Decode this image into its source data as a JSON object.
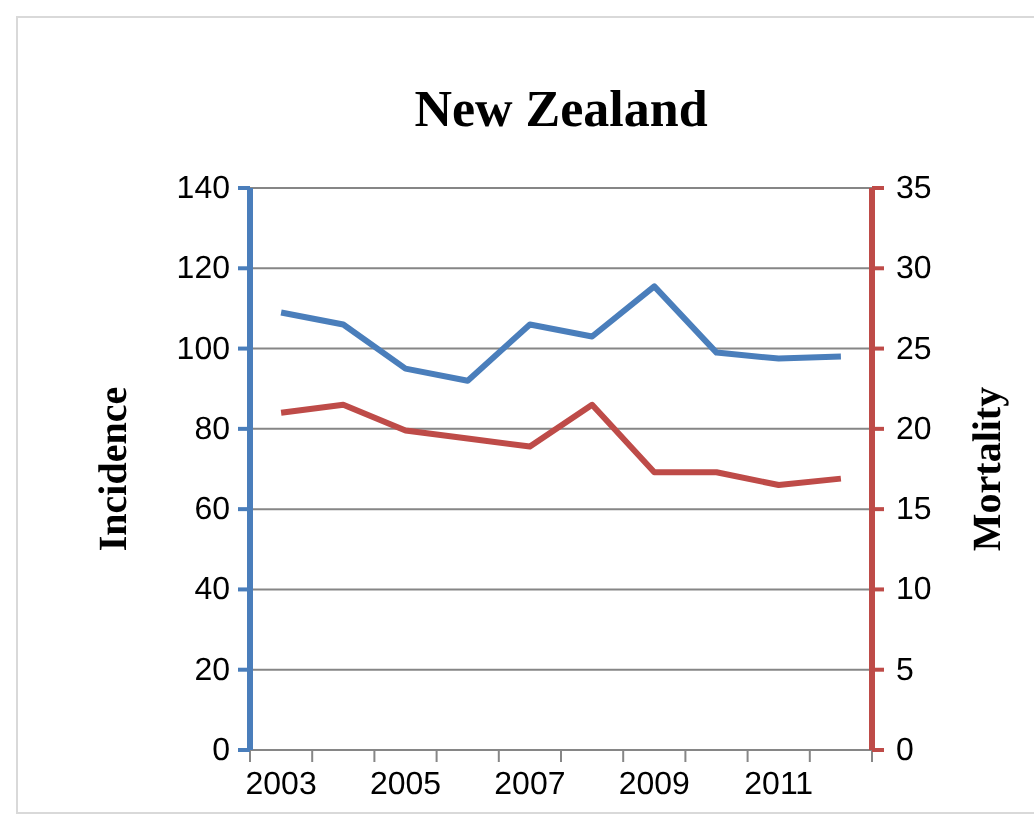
{
  "chart_data": {
    "type": "line",
    "title": "New Zealand",
    "ylabel": "Incidence",
    "y2label": "Mortality",
    "categories": [
      "2003",
      null,
      "2005",
      null,
      "2007",
      null,
      "2009",
      null,
      "2011",
      null
    ],
    "series": [
      {
        "color": "#4a7ebb",
        "values": [
          109,
          106,
          95,
          92,
          106,
          103,
          115.5,
          99,
          97.5,
          98
        ]
      },
      {
        "color": "#be4b48",
        "axis": "y2",
        "values": [
          21,
          21.5,
          19.9,
          19.4,
          18.9,
          21.5,
          17.3,
          17.3,
          16.5,
          16.9
        ]
      }
    ],
    "ylim": [
      0,
      140
    ],
    "yticks": [
      0,
      20,
      40,
      60,
      80,
      100,
      120,
      140
    ],
    "y2lim": [
      0,
      35
    ],
    "y2ticks": [
      0,
      5,
      10,
      15,
      20,
      25,
      30,
      35
    ],
    "grid": "y",
    "marker": "none",
    "line_style": "solid"
  }
}
